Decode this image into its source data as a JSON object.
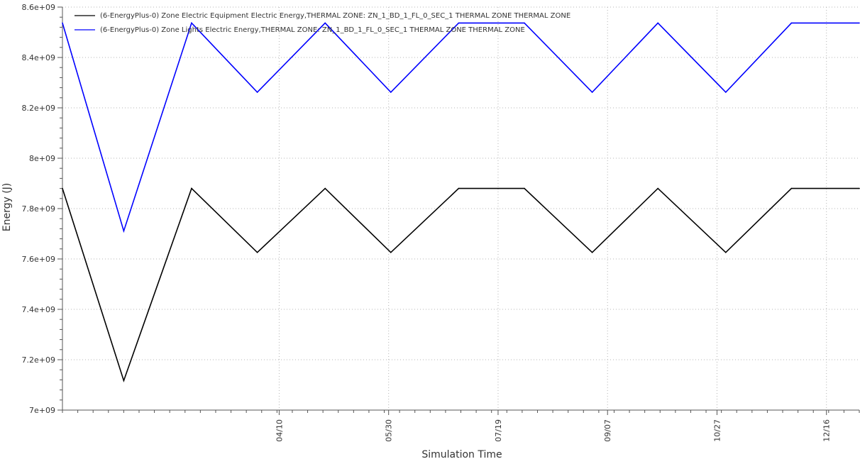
{
  "chart_data": {
    "type": "line",
    "xlabel": "Simulation Time",
    "ylabel": "Energy (J)",
    "ylim": [
      7000000000,
      8600000000
    ],
    "yticks": [
      {
        "value": 7000000000,
        "label": "7e+09"
      },
      {
        "value": 7200000000,
        "label": "7.2e+09"
      },
      {
        "value": 7400000000,
        "label": "7.4e+09"
      },
      {
        "value": 7600000000,
        "label": "7.6e+09"
      },
      {
        "value": 7800000000,
        "label": "7.8e+09"
      },
      {
        "value": 8000000000,
        "label": "8e+09"
      },
      {
        "value": 8200000000,
        "label": "8.2e+09"
      },
      {
        "value": 8400000000,
        "label": "8.4e+09"
      },
      {
        "value": 8600000000,
        "label": "8.6e+09"
      }
    ],
    "xlim": [
      "01-01",
      "12-31"
    ],
    "xticks": [
      {
        "date": "04-10",
        "label": "04/10"
      },
      {
        "date": "05-30",
        "label": "05/30"
      },
      {
        "date": "07-19",
        "label": "07/19"
      },
      {
        "date": "09-07",
        "label": "09/07"
      },
      {
        "date": "10-27",
        "label": "10/27"
      },
      {
        "date": "12-16",
        "label": "12/16"
      }
    ],
    "grid": true,
    "legend_position": "top-left",
    "x": [
      "01-01",
      "01-29",
      "03-01",
      "03-31",
      "05-01",
      "05-31",
      "07-01",
      "07-31",
      "08-31",
      "09-30",
      "10-31",
      "11-30",
      "12-31"
    ],
    "series": [
      {
        "name": "(6-EnergyPlus-0) Zone Electric Equipment Electric Energy,THERMAL ZONE: ZN_1_BD_1_FL_0_SEC_1 THERMAL ZONE THERMAL ZONE",
        "color": "#000000",
        "values": [
          7880000000,
          7117000000,
          7880000000,
          7626000000,
          7880000000,
          7626000000,
          7880000000,
          7880000000,
          7626000000,
          7880000000,
          7626000000,
          7880000000,
          7880000000
        ]
      },
      {
        "name": "(6-EnergyPlus-0) Zone Lights Electric Energy,THERMAL ZONE: ZN_1_BD_1_FL_0_SEC_1 THERMAL ZONE THERMAL ZONE",
        "color": "#0000ff",
        "values": [
          8537000000,
          7711000000,
          8537000000,
          8262000000,
          8537000000,
          8262000000,
          8537000000,
          8537000000,
          8262000000,
          8537000000,
          8262000000,
          8537000000,
          8537000000
        ]
      }
    ]
  }
}
